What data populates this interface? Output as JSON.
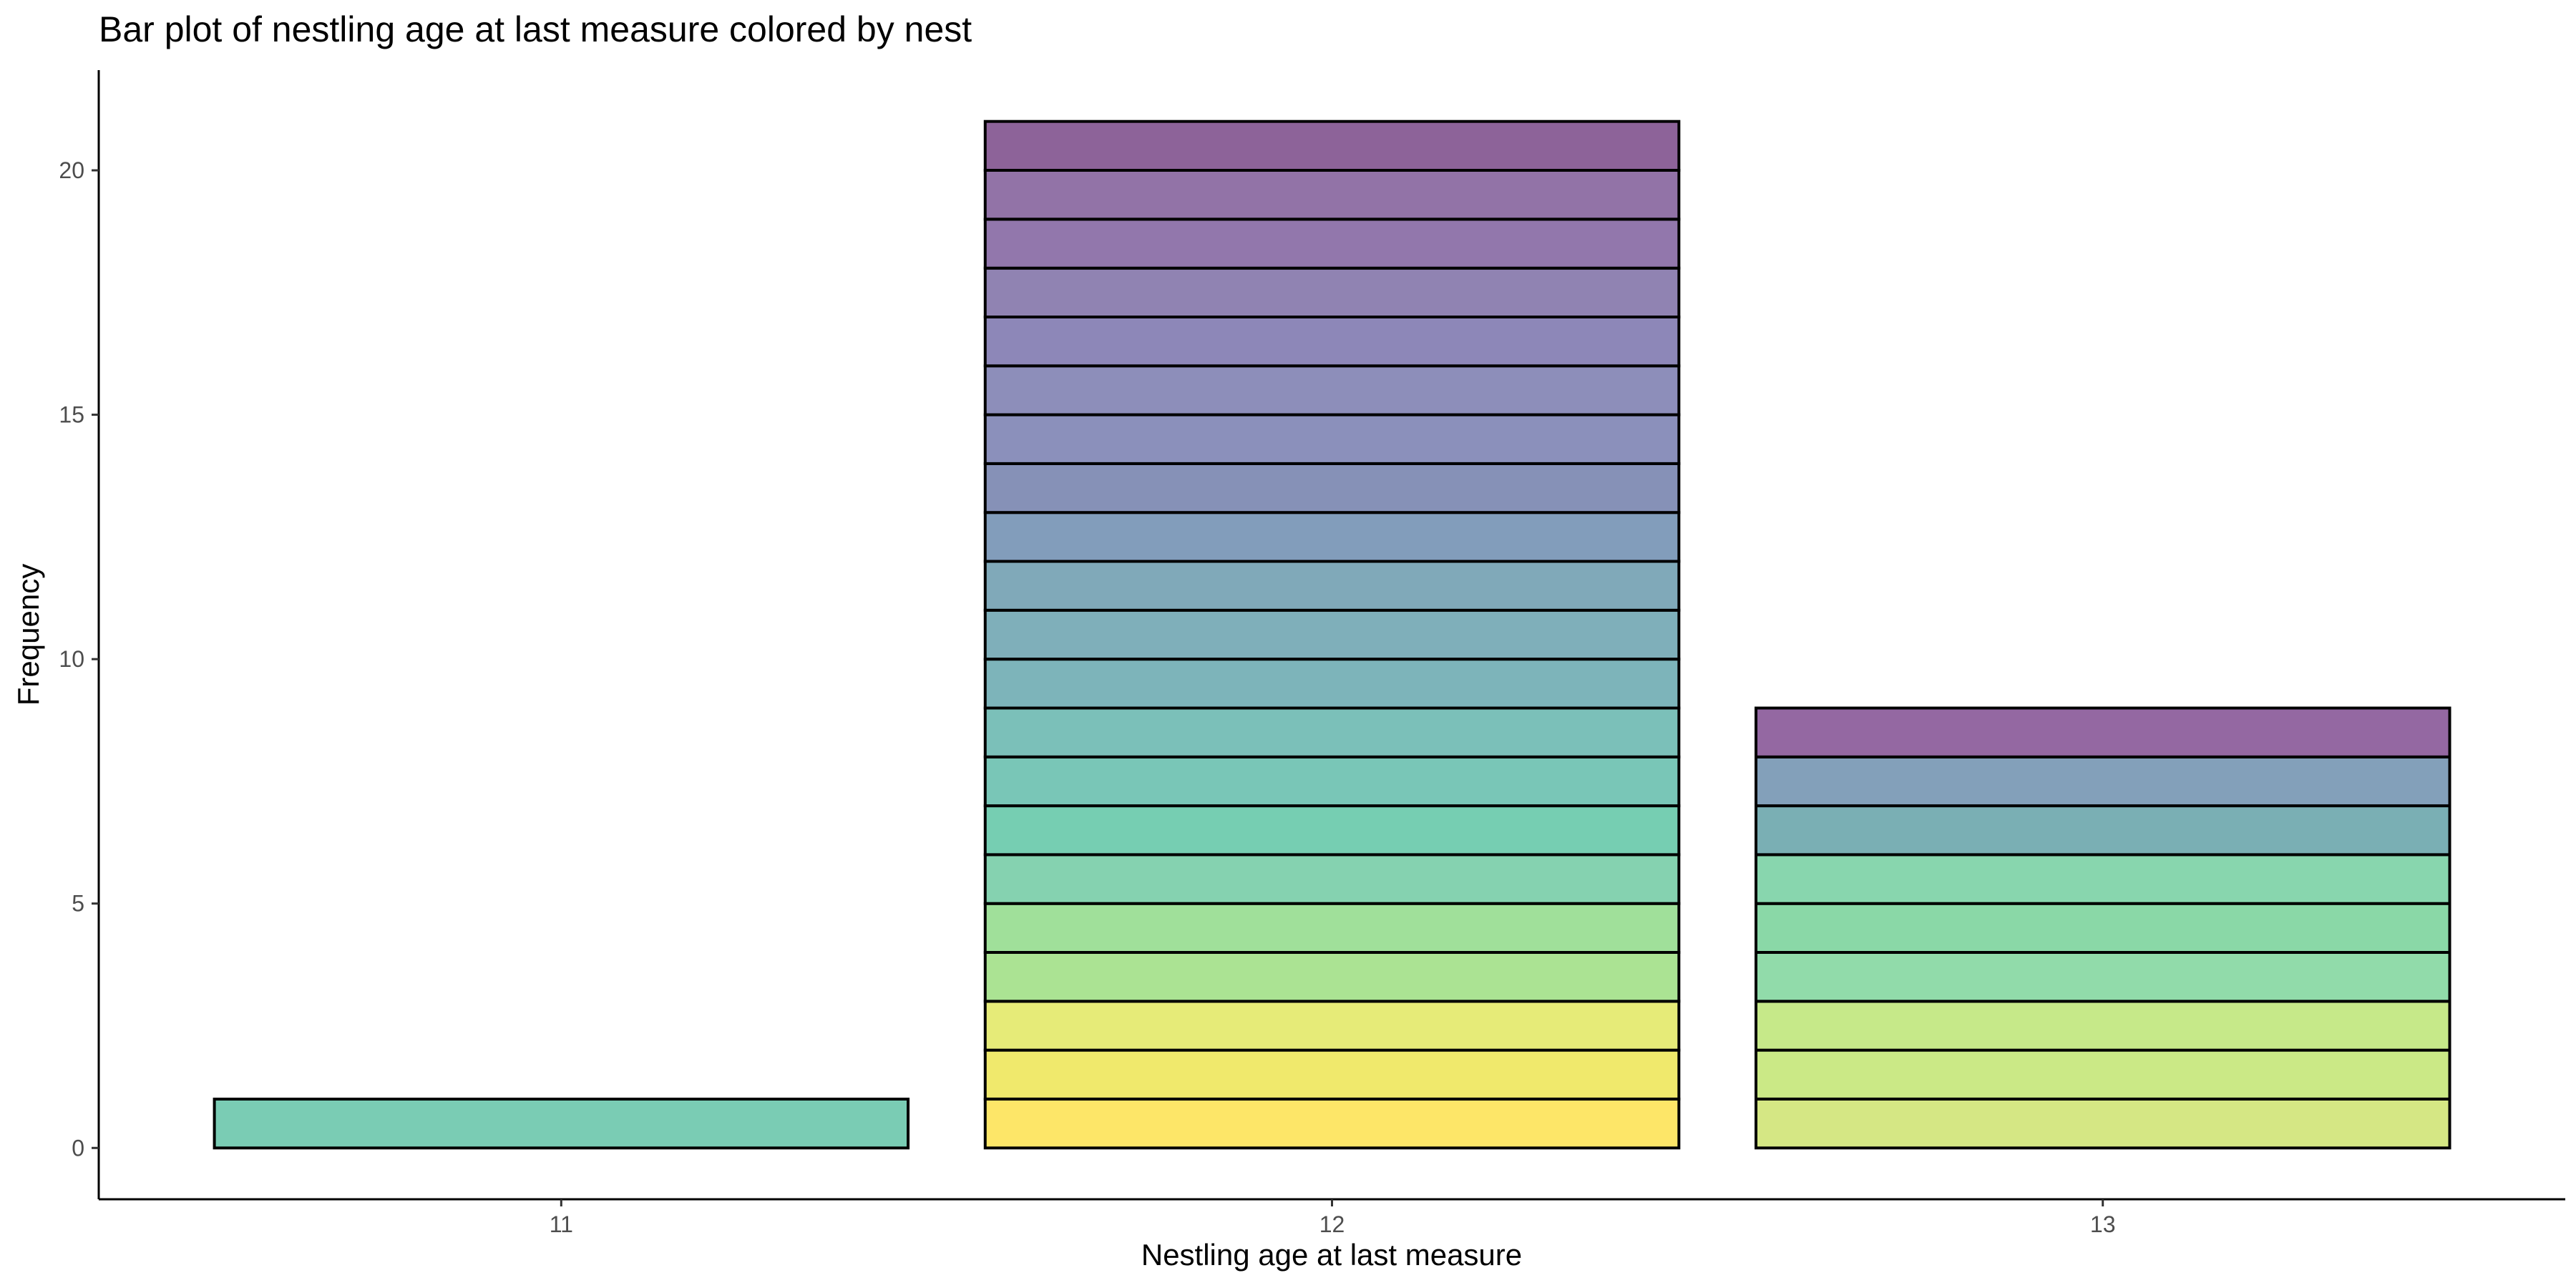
{
  "chart_data": {
    "type": "bar",
    "stacked": true,
    "title": "Bar plot of nestling age at last measure colored by nest",
    "xlabel": "Nestling age at last measure",
    "ylabel": "Frequency",
    "ylim": [
      -1.05,
      22.05
    ],
    "yticks": [
      0,
      5,
      10,
      15,
      20
    ],
    "grid": false,
    "legend": "none",
    "categories": [
      "11",
      "12",
      "13"
    ],
    "values": [
      1,
      21,
      9
    ],
    "segments": [
      [
        "#7accb4"
      ],
      [
        "#fde668",
        "#f0e96c",
        "#e6eb78",
        "#abe393",
        "#a0e09a",
        "#85d2b0",
        "#76ceb2",
        "#79c6b7",
        "#7bc0b9",
        "#7db4ba",
        "#7fafba",
        "#80a9b9",
        "#829dbb",
        "#8691b7",
        "#8b90bb",
        "#8d8eba",
        "#8d87b8",
        "#9083b2",
        "#9277ac",
        "#9273a7",
        "#8d6399"
      ],
      [
        "#d5e784",
        "#cbe986",
        "#c6e989",
        "#91dbaa",
        "#8ad8a7",
        "#88d6ae",
        "#7aafb4",
        "#83a0ba",
        "#9468a2"
      ]
    ]
  }
}
